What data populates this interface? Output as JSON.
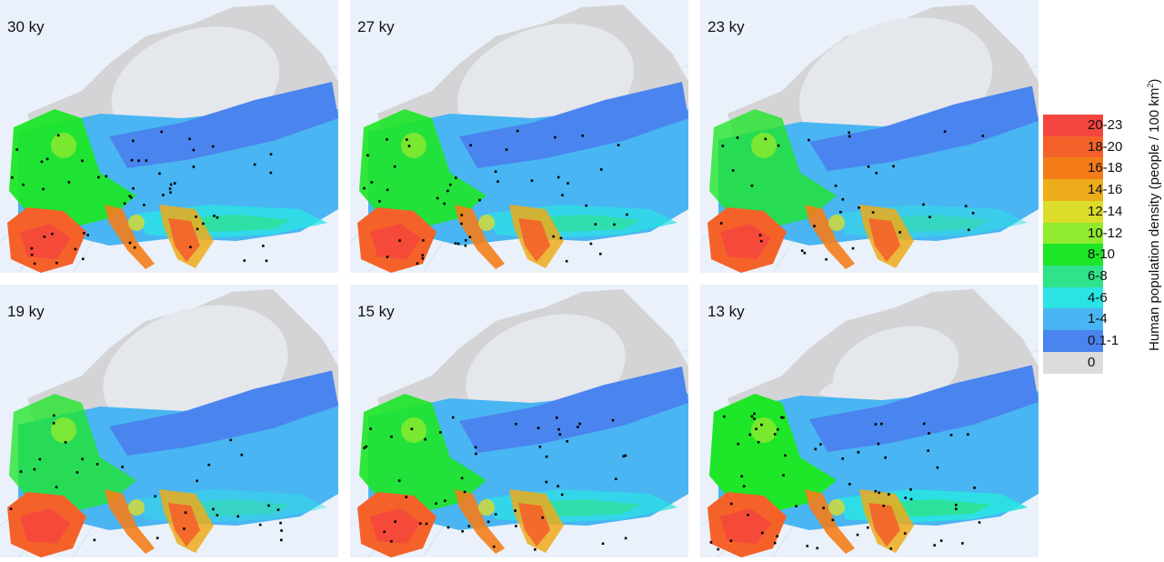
{
  "panels": [
    {
      "label": "30 ky",
      "extent": 1.0,
      "ice": 1.0,
      "scale": 1.0
    },
    {
      "label": "27 ky",
      "extent": 1.0,
      "ice": 1.05,
      "scale": 0.9
    },
    {
      "label": "23 ky",
      "extent": 0.85,
      "ice": 1.15,
      "scale": 0.6
    },
    {
      "label": "19 ky",
      "extent": 0.85,
      "ice": 1.1,
      "scale": 0.55
    },
    {
      "label": "15 ky",
      "extent": 1.0,
      "ice": 0.95,
      "scale": 0.9
    },
    {
      "label": "13 ky",
      "extent": 1.05,
      "ice": 0.75,
      "scale": 1.15
    }
  ],
  "legend": {
    "title": "Human population density (people / 100 km",
    "title_sup": "2",
    "title_end": ")",
    "items": [
      {
        "label": "20-23",
        "color": "#f5453f"
      },
      {
        "label": "18-20",
        "color": "#f4622a"
      },
      {
        "label": "16-18",
        "color": "#f47d19"
      },
      {
        "label": "14-16",
        "color": "#edac1a"
      },
      {
        "label": "12-14",
        "color": "#dcdc2a"
      },
      {
        "label": "10-12",
        "color": "#90ea2e"
      },
      {
        "label": "8-10",
        "color": "#1ee628"
      },
      {
        "label": "6-8",
        "color": "#2ee38a"
      },
      {
        "label": "4-6",
        "color": "#2be3e3"
      },
      {
        "label": "1-4",
        "color": "#49b5f2"
      },
      {
        "label": "0.1-1",
        "color": "#4a84ee"
      },
      {
        "label": "0",
        "color": "#dcdcdc"
      }
    ]
  },
  "colors": {
    "sea": "#eaf1fa",
    "ice": "#e4e7ec",
    "land_zero": "#d4d4d6",
    "sites": "#000000"
  }
}
